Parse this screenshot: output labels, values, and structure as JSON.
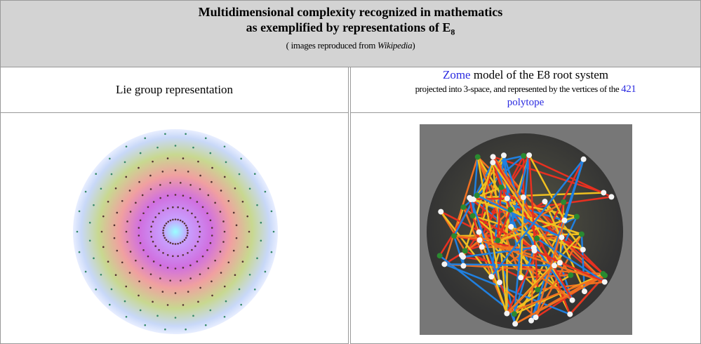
{
  "header": {
    "title_line1": "Multidimensional complexity recognized in mathematics",
    "title_line2": "as exemplified by representations of E",
    "title_subscript": "8",
    "credit_prefix": "( images reproduced from",
    "credit_source": "Wikipedia",
    "credit_suffix": ")"
  },
  "columns": [
    {
      "caption": "Lie group representation"
    },
    {
      "caption_link": "Zome",
      "caption_rest": "model of the E8 root system",
      "detail": "projected into 3-space, and represented by the vertices of the",
      "detail_link": "421",
      "detail_link2": "polytope"
    }
  ]
}
